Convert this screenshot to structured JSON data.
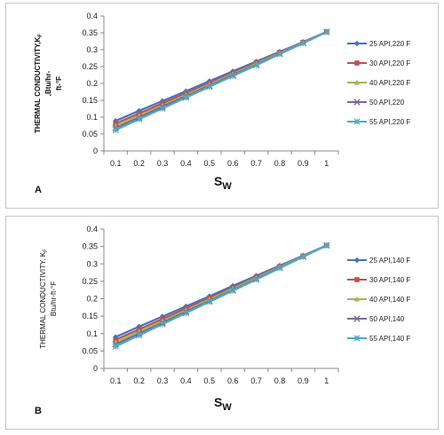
{
  "chart_data": [
    {
      "type": "line",
      "panel_label": "A",
      "xlabel": "S",
      "xlabel_sub": "W",
      "ylabel_lines": [
        "THERMAL CONDUCTIVITY,K",
        ",Btu/hr-",
        "ft-°F"
      ],
      "ylabel_sub": "F",
      "x": [
        0.1,
        0.2,
        0.3,
        0.4,
        0.5,
        0.6,
        0.7,
        0.8,
        0.9,
        1
      ],
      "x_tick_labels": [
        "0.1",
        "0.2",
        "0.3",
        "0.4",
        "0.5",
        "0.6",
        "0.7",
        "0.8",
        "0.9",
        "1"
      ],
      "ylim": [
        0,
        0.4
      ],
      "y_ticks": [
        0,
        0.05,
        0.1,
        0.15,
        0.2,
        0.25,
        0.3,
        0.35,
        0.4
      ],
      "y_tick_labels": [
        "0",
        "0.05",
        "0.1",
        "0.15",
        "0.2",
        "0.25",
        "0.3",
        "0.35",
        "0.4"
      ],
      "grid": false,
      "legend_position": "right",
      "series": [
        {
          "name": "25 API,220 F",
          "color": "#4472C4",
          "marker": "diamond",
          "values": [
            0.089,
            0.119,
            0.148,
            0.177,
            0.207,
            0.236,
            0.265,
            0.294,
            0.323,
            0.353
          ]
        },
        {
          "name": "30 API,220 F",
          "color": "#C0504D",
          "marker": "square",
          "values": [
            0.081,
            0.111,
            0.141,
            0.171,
            0.201,
            0.231,
            0.262,
            0.292,
            0.322,
            0.353
          ]
        },
        {
          "name": "40 API,220 F",
          "color": "#9BBB59",
          "marker": "triangle",
          "values": [
            0.074,
            0.105,
            0.135,
            0.166,
            0.197,
            0.228,
            0.259,
            0.29,
            0.321,
            0.353
          ]
        },
        {
          "name": "50 API,220",
          "color": "#8064A2",
          "marker": "x",
          "values": [
            0.068,
            0.099,
            0.131,
            0.162,
            0.193,
            0.225,
            0.256,
            0.288,
            0.32,
            0.353
          ]
        },
        {
          "name": "55 API,220 F",
          "color": "#4BACC6",
          "marker": "star",
          "values": [
            0.062,
            0.094,
            0.126,
            0.158,
            0.19,
            0.222,
            0.254,
            0.287,
            0.319,
            0.353
          ]
        }
      ]
    },
    {
      "type": "line",
      "panel_label": "B",
      "xlabel": "S",
      "xlabel_sub": "W",
      "ylabel_lines": [
        "THERMAL CONDUCTIVITY, K",
        "Btu/hr-ft-°F"
      ],
      "ylabel_sub": "F",
      "x": [
        0.1,
        0.2,
        0.3,
        0.4,
        0.5,
        0.6,
        0.7,
        0.8,
        0.9,
        1
      ],
      "x_tick_labels": [
        "0.1",
        "0.2",
        "0.3",
        "0.4",
        "0.5",
        "0.6",
        "0.7",
        "0.8",
        "0.9",
        "1"
      ],
      "ylim": [
        0,
        0.4
      ],
      "y_ticks": [
        0,
        0.05,
        0.1,
        0.15,
        0.2,
        0.25,
        0.3,
        0.35,
        0.4
      ],
      "y_tick_labels": [
        "0",
        "0.05",
        "0.1",
        "0.15",
        "0.2",
        "0.25",
        "0.3",
        "0.35",
        "0.4"
      ],
      "grid": false,
      "legend_position": "right",
      "series": [
        {
          "name": "25 API,140 F",
          "color": "#4472C4",
          "marker": "diamond",
          "values": [
            0.09,
            0.12,
            0.149,
            0.178,
            0.207,
            0.237,
            0.266,
            0.295,
            0.324,
            0.353
          ]
        },
        {
          "name": "30 API,140 F",
          "color": "#C0504D",
          "marker": "square",
          "values": [
            0.082,
            0.112,
            0.142,
            0.172,
            0.202,
            0.232,
            0.262,
            0.292,
            0.322,
            0.353
          ]
        },
        {
          "name": "40 API,140 F",
          "color": "#9BBB59",
          "marker": "triangle",
          "values": [
            0.075,
            0.106,
            0.136,
            0.167,
            0.198,
            0.229,
            0.26,
            0.291,
            0.322,
            0.353
          ]
        },
        {
          "name": "50 API,140",
          "color": "#8064A2",
          "marker": "x",
          "values": [
            0.069,
            0.1,
            0.131,
            0.163,
            0.194,
            0.225,
            0.257,
            0.289,
            0.321,
            0.353
          ]
        },
        {
          "name": "55 API,140 F",
          "color": "#4BACC6",
          "marker": "star",
          "values": [
            0.063,
            0.095,
            0.127,
            0.159,
            0.191,
            0.223,
            0.255,
            0.288,
            0.32,
            0.353
          ]
        }
      ]
    }
  ]
}
